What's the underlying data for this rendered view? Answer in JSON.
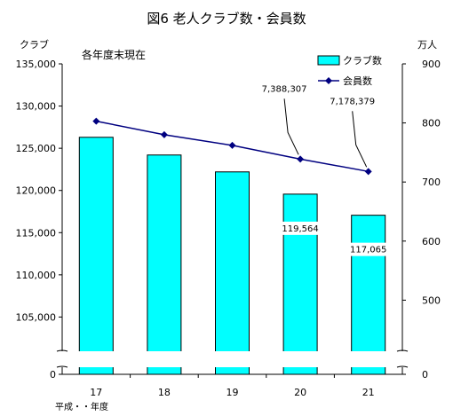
{
  "chart_data": {
    "type": "bar",
    "title": "図6 老人クラブ数・会員数",
    "note": "各年度末現在",
    "categories": [
      "17",
      "18",
      "19",
      "20",
      "21"
    ],
    "x_unit_label": "平成・・年度",
    "left_axis": {
      "unit_label": "クラブ",
      "ticks": [
        "135,000",
        "130,000",
        "125,000",
        "120,000",
        "115,000",
        "110,000",
        "105,000",
        "0"
      ],
      "range": [
        100000,
        135000
      ],
      "broken": true
    },
    "right_axis": {
      "unit_label": "万人",
      "ticks": [
        "900",
        "800",
        "700",
        "600",
        "500",
        "0"
      ],
      "range": [
        400,
        900
      ],
      "broken": true
    },
    "series": [
      {
        "name": "クラブ数",
        "type": "bar",
        "axis": "left",
        "color": "#00FFFF",
        "values": [
          126300,
          124200,
          122200,
          119564,
          117065
        ],
        "data_labels": [
          "",
          "",
          "",
          "119,564",
          "117,065"
        ]
      },
      {
        "name": "会員数",
        "type": "line",
        "axis": "right",
        "unit": "万人",
        "color": "#000080",
        "values": [
          803,
          780,
          762,
          738.8307,
          717.8379
        ],
        "data_labels": [
          "",
          "",
          "",
          "7,388,307",
          "7,178,379"
        ]
      }
    ],
    "legend_position": "top-right",
    "grid": false
  }
}
